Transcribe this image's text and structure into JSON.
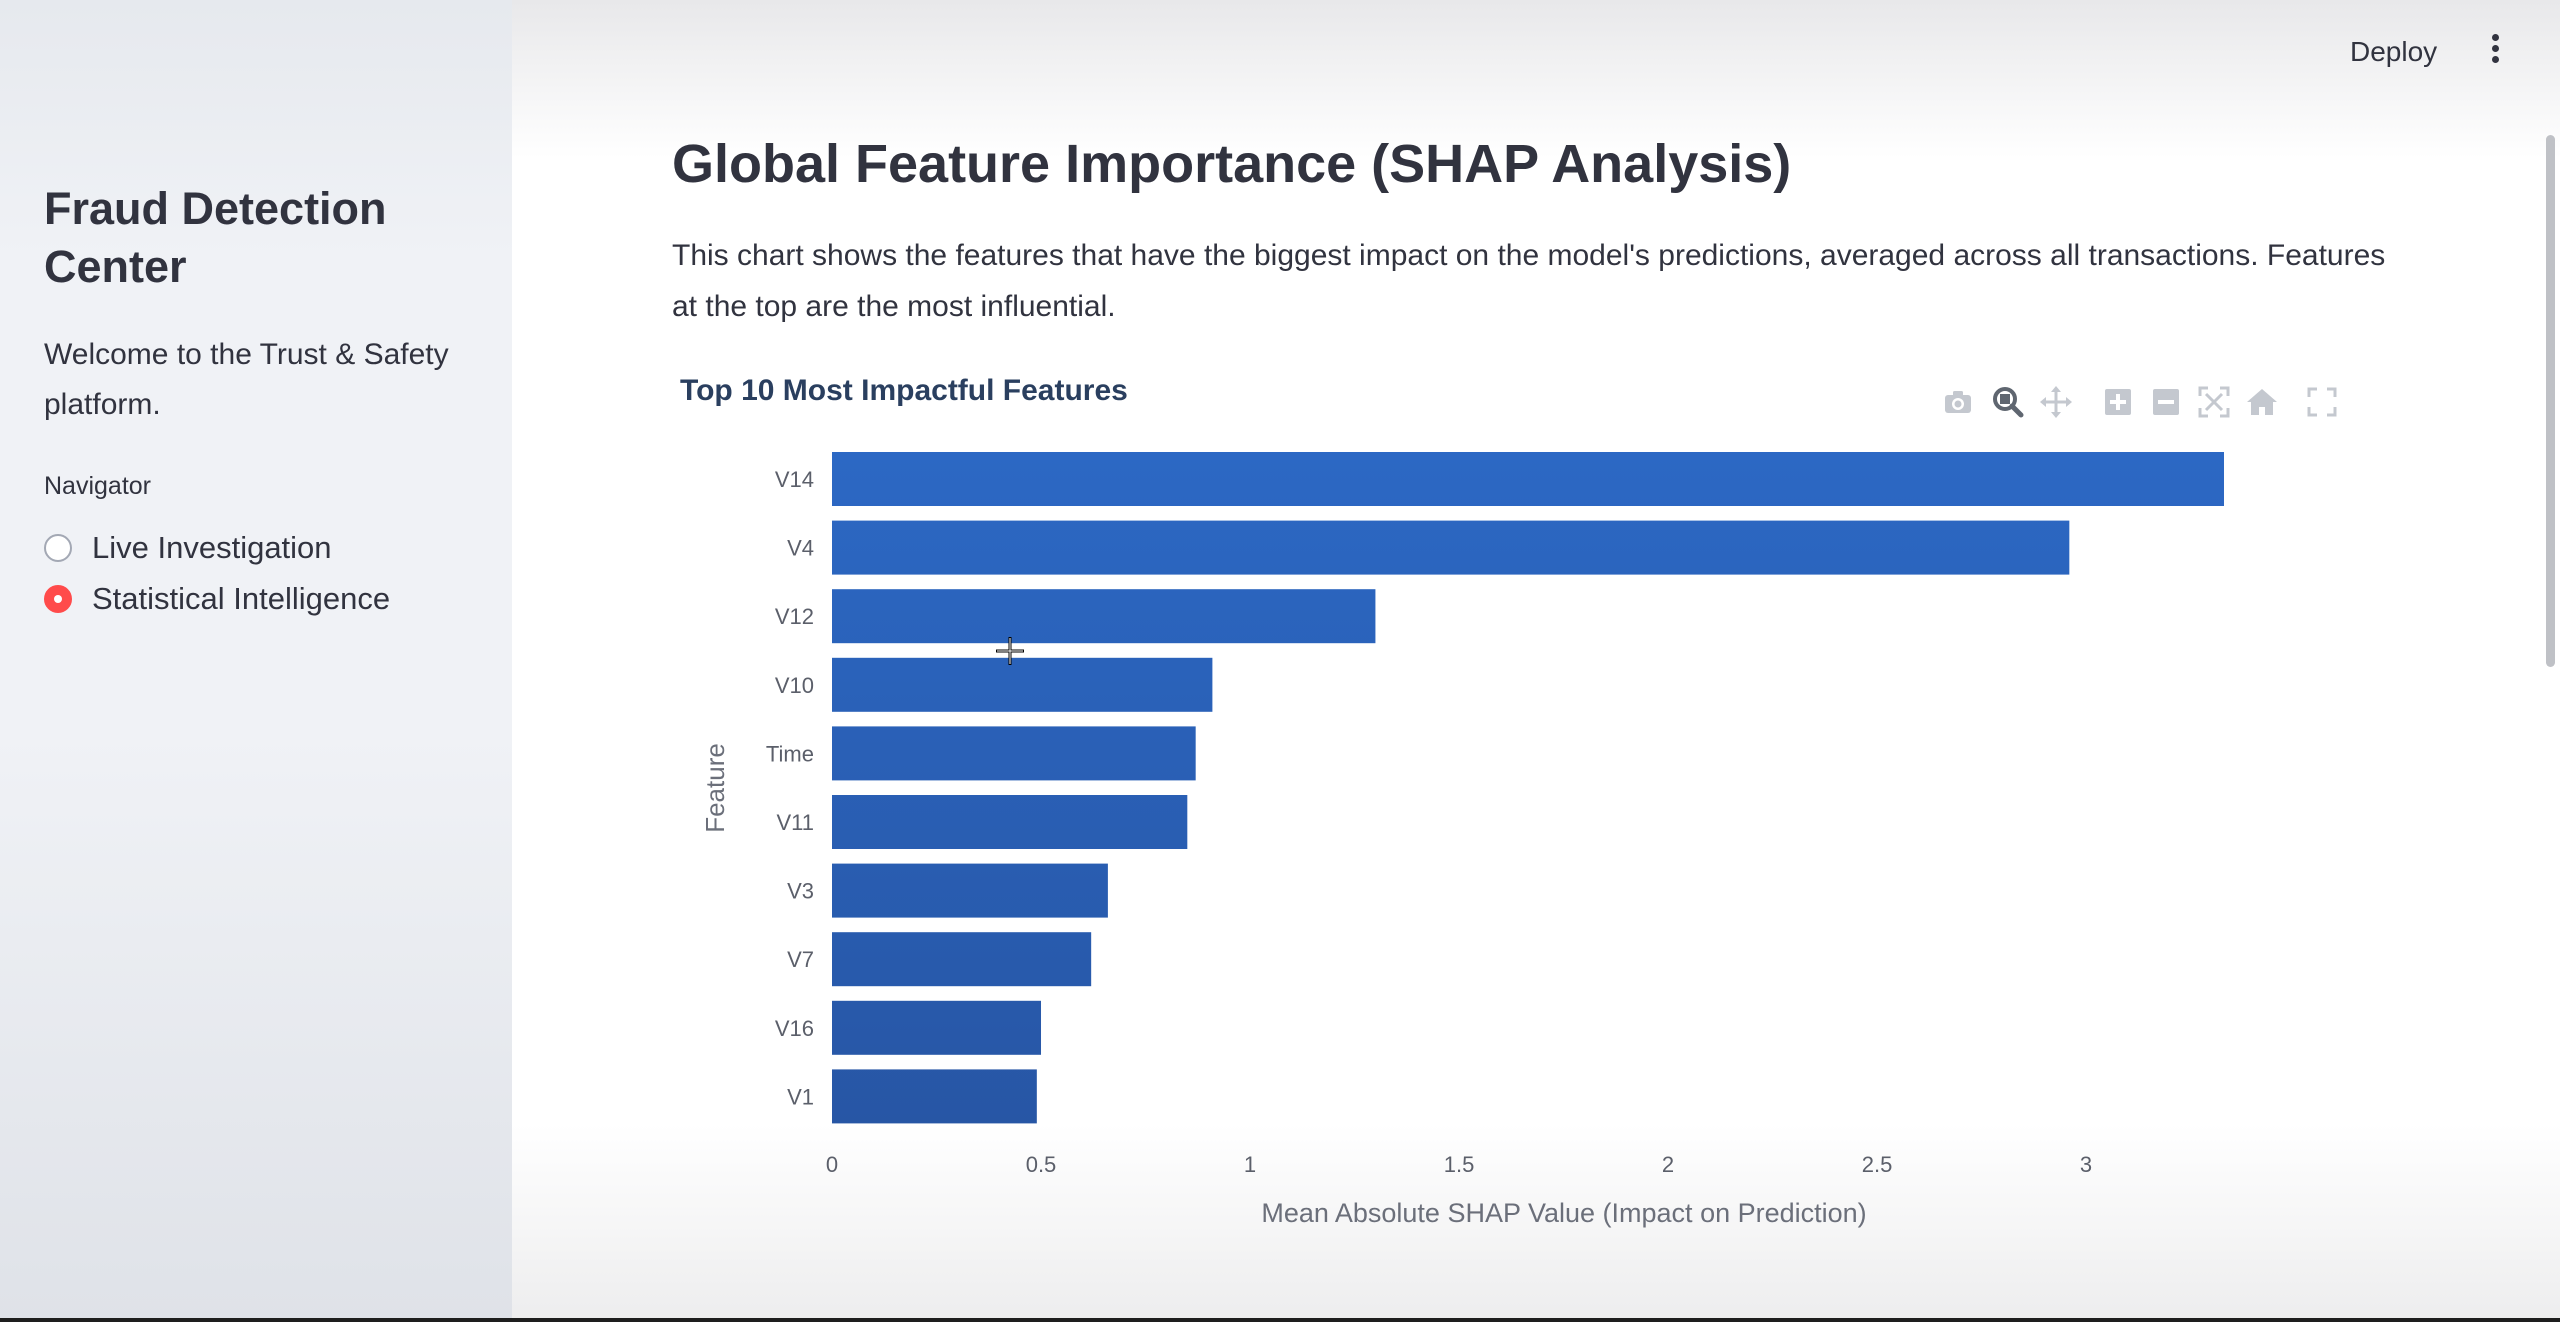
{
  "sidebar": {
    "title": "Fraud Detection Center",
    "welcome": "Welcome to the Trust & Safety platform.",
    "nav_label": "Navigator",
    "options": [
      {
        "label": "Live Investigation",
        "selected": false
      },
      {
        "label": "Statistical Intelligence",
        "selected": true
      }
    ]
  },
  "header": {
    "deploy_label": "Deploy",
    "menu_icon": "kebab-menu-icon"
  },
  "main": {
    "title": "Global Feature Importance (SHAP Analysis)",
    "description": "This chart shows the features that have the biggest impact on the model's predictions, averaged across all transactions. Features at the top are the most influential."
  },
  "modebar": {
    "icons": [
      "camera-icon",
      "zoom-icon",
      "pan-icon",
      "zoom-in-icon",
      "zoom-out-icon",
      "autoscale-icon",
      "reset-axes-icon",
      "fullscreen-icon"
    ],
    "active": "zoom-icon"
  },
  "colors": {
    "accent": "#ff4b4b",
    "bar_top": "#2c68c4",
    "bar_bottom": "#2756a5"
  },
  "chart_data": {
    "type": "bar",
    "orientation": "horizontal",
    "title": "Top 10 Most Impactful Features",
    "xlabel": "Mean Absolute SHAP Value (Impact on Prediction)",
    "ylabel": "Feature",
    "categories": [
      "V14",
      "V4",
      "V12",
      "V10",
      "Time",
      "V11",
      "V3",
      "V7",
      "V16",
      "V1"
    ],
    "values": [
      3.33,
      2.96,
      1.3,
      0.91,
      0.87,
      0.85,
      0.66,
      0.62,
      0.5,
      0.49
    ],
    "xlim": [
      0,
      3.33
    ],
    "xticks": [
      0,
      0.5,
      1,
      1.5,
      2,
      2.5,
      3
    ],
    "xtick_labels": [
      "0",
      "0.5",
      "1",
      "1.5",
      "2",
      "2.5",
      "3"
    ],
    "grid": false,
    "legend": "none"
  }
}
